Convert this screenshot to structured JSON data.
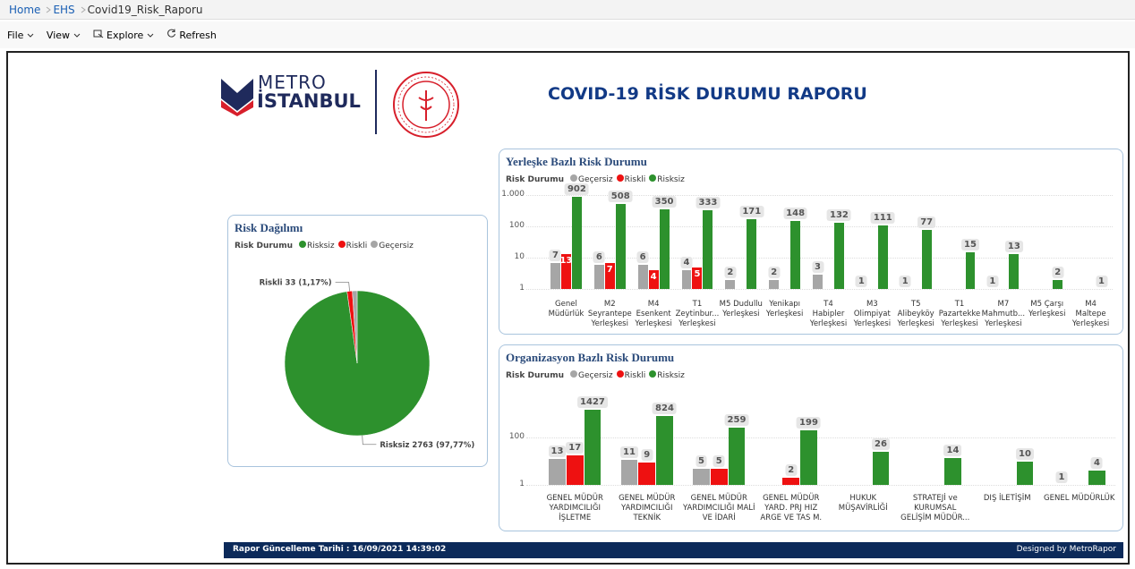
{
  "breadcrumb": [
    "Home",
    "EHS",
    "Covid19_Risk_Raporu"
  ],
  "toolbar": [
    "File",
    "View",
    "Explore",
    "Refresh"
  ],
  "header": {
    "logo_top": "METRO",
    "logo_bottom": "İSTANBUL",
    "title": "COVID-19 RİSK DURUMU RAPORU"
  },
  "footer": {
    "updated": "Rapor Güncelleme Tarihi :  16/09/2021 14:39:02",
    "credit": "Designed by MetroRapor"
  },
  "chart_data": [
    {
      "type": "pie",
      "title": "Risk Dağılımı",
      "legend_title": "Risk Durumu",
      "categories": [
        "Risksiz",
        "Riskli",
        "Geçersiz"
      ],
      "values": [
        2763,
        33,
        30
      ],
      "colors": [
        "#2d912d",
        "#ee1111",
        "#a6a6a6"
      ],
      "value_labels": [
        "Risksiz 2763 (97,77%)",
        "Riskli 33 (1,17%)",
        null
      ]
    },
    {
      "type": "bar",
      "title": "Yerleşke Bazlı Risk Durumu",
      "legend_title": "Risk Durumu",
      "categories": [
        "Genel Müdürlük",
        "M2 Seyrantepe Yerleşkesi",
        "M4 Esenkent Yerleşkesi",
        "T1 Zeytinbur... Yerleşkesi",
        "M5 Dudullu Yerleşkesi",
        "Yenikapı Yerleşkesi",
        "T4 Habipler Yerleşkesi",
        "M3 Olimpiyat Yerleşkesi",
        "T5 Alibeyköy Yerleşkesi",
        "T1 Pazartekke Yerleşkesi",
        "M7 Mahmutb... Yerleşkesi",
        "M5 Çarşı Yerleşkesi",
        "M4 Maltepe Yerleşkesi"
      ],
      "series": [
        {
          "name": "Geçersiz",
          "color": "#a6a6a6",
          "values": [
            7,
            6,
            6,
            4,
            2,
            2,
            3,
            1,
            1,
            null,
            1,
            null,
            null
          ]
        },
        {
          "name": "Riskli",
          "color": "#ee1111",
          "label_position": "inside",
          "values": [
            13,
            7,
            4,
            5,
            null,
            null,
            null,
            null,
            null,
            null,
            null,
            null,
            null
          ]
        },
        {
          "name": "Risksiz",
          "color": "#2d912d",
          "values": [
            902,
            508,
            350,
            333,
            171,
            148,
            132,
            111,
            77,
            15,
            13,
            2,
            1
          ]
        }
      ],
      "log_scale": true,
      "ylim": [
        0.6,
        1600
      ],
      "yticks": [
        1,
        10,
        100,
        {
          "value": 1000,
          "label": "1.000"
        }
      ],
      "grid": true
    },
    {
      "type": "bar",
      "title": "Organizasyon Bazlı Risk Durumu",
      "legend_title": "Risk Durumu",
      "categories": [
        "GENEL MÜDÜR YARDIMCILIĞI İŞLETME",
        "GENEL MÜDÜR YARDIMCILIĞI TEKNİK",
        "GENEL MÜDÜR YARDIMCILIĞI MALİ VE İDARİ",
        "GENEL MÜDÜR YARD. PRJ HIZ ARGE VE TAS M.",
        "HUKUK MÜŞAVİRLİĞİ",
        "STRATEJİ ve KURUMSAL GELİŞİM MÜDÜR...",
        "DIŞ İLETİŞİM",
        "GENEL MÜDÜRLÜK"
      ],
      "series": [
        {
          "name": "Geçersiz",
          "color": "#a6a6a6",
          "values": [
            13,
            11,
            5,
            null,
            null,
            null,
            null,
            1
          ]
        },
        {
          "name": "Riskli",
          "color": "#ee1111",
          "values": [
            17,
            9,
            5,
            2,
            null,
            null,
            null,
            null
          ]
        },
        {
          "name": "Risksiz",
          "color": "#2d912d",
          "values": [
            1427,
            824,
            259,
            199,
            26,
            14,
            10,
            4
          ]
        }
      ],
      "log_scale": true,
      "ylim": [
        0.55,
        10000
      ],
      "yticks": [
        1,
        100
      ],
      "grid": true
    }
  ]
}
